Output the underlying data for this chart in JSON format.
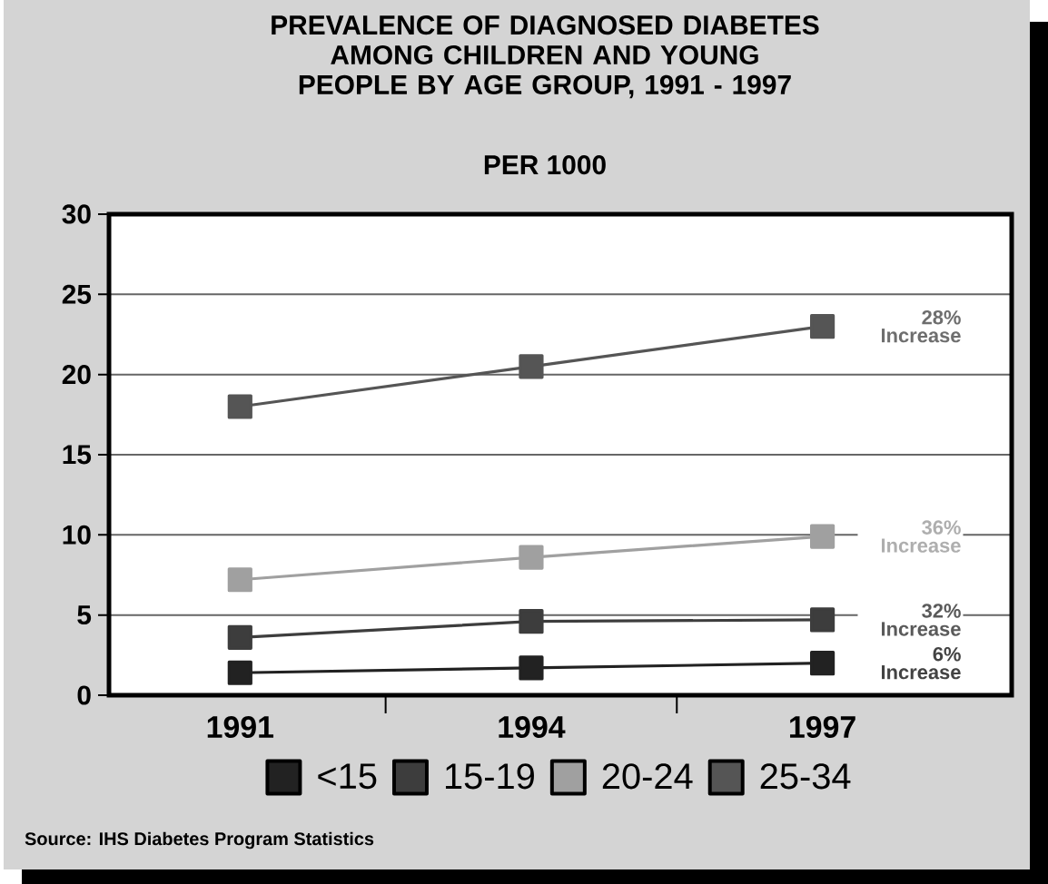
{
  "chart_data": {
    "type": "line",
    "title": "PREVALENCE OF DIAGNOSED DIABETES AMONG CHILDREN AND YOUNG PEOPLE BY AGE GROUP, 1991 - 1997",
    "subtitle": "PER 1000",
    "categories": [
      "1991",
      "1994",
      "1997"
    ],
    "series": [
      {
        "name": "<15",
        "color": "#222222",
        "values": [
          1.4,
          1.7,
          2.0
        ]
      },
      {
        "name": "15-19",
        "color": "#3d3d3d",
        "values": [
          3.6,
          4.6,
          4.7
        ]
      },
      {
        "name": "20-24",
        "color": "#a0a0a0",
        "values": [
          7.2,
          8.6,
          9.9
        ]
      },
      {
        "name": "25-34",
        "color": "#555555",
        "values": [
          18.0,
          20.5,
          23.0
        ]
      }
    ],
    "ylim": [
      0,
      30
    ],
    "yticks": [
      0,
      5,
      10,
      15,
      20,
      25,
      30
    ],
    "grid": "y",
    "legend": "bottom",
    "marker": "square",
    "line_style": "solid",
    "annotations": [
      "28% Increase",
      "36% Increase",
      "32% Increase",
      "6% Increase",
      "Source: IHS Diabetes Program Statistics"
    ]
  }
}
